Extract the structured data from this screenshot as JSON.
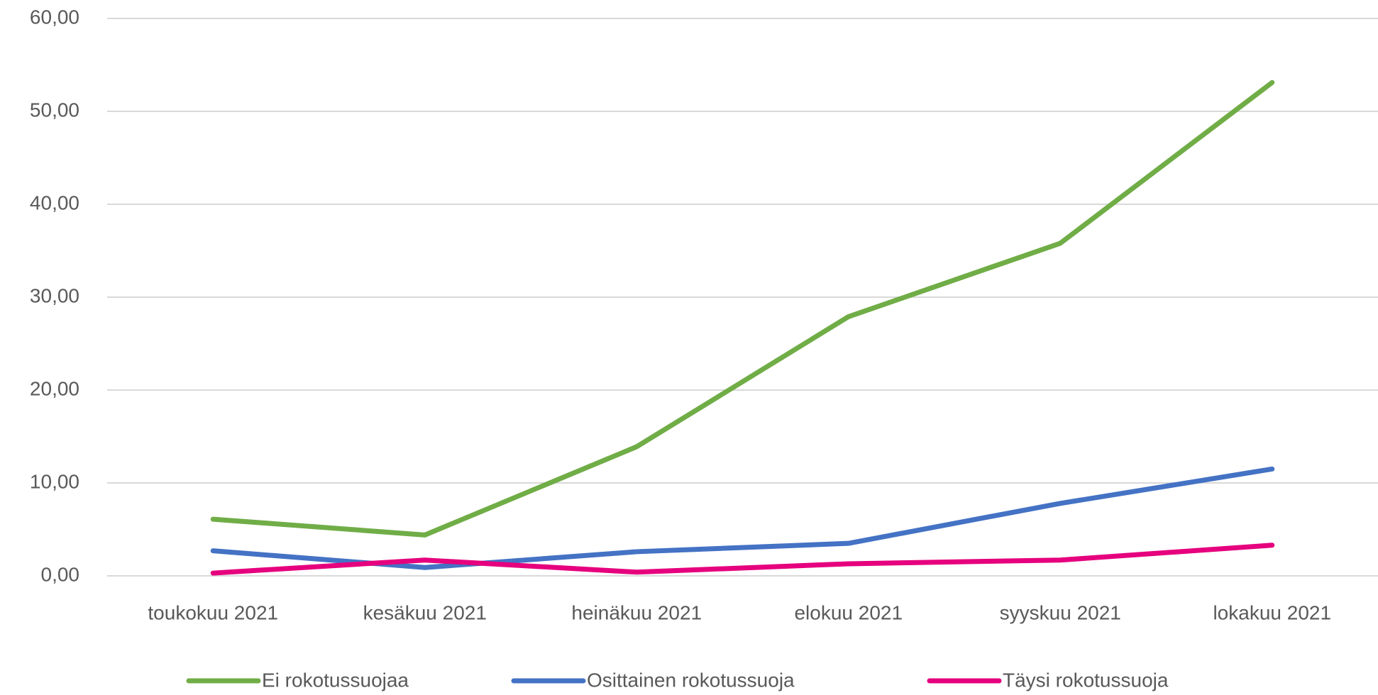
{
  "chart_data": {
    "type": "line",
    "categories": [
      "toukokuu 2021",
      "kesäkuu 2021",
      "heinäkuu 2021",
      "elokuu 2021",
      "syyskuu 2021",
      "lokakuu 2021"
    ],
    "series": [
      {
        "name": "Ei rokotussuojaa",
        "color": "#70ad47",
        "values": [
          6.1,
          4.4,
          13.9,
          27.9,
          35.8,
          53.1
        ]
      },
      {
        "name": "Osittainen rokotussuoja",
        "color": "#4472c4",
        "values": [
          2.7,
          0.9,
          2.6,
          3.5,
          7.8,
          11.5
        ]
      },
      {
        "name": "Täysi rokotussuoja",
        "color": "#e6007e",
        "values": [
          0.3,
          1.7,
          0.4,
          1.3,
          1.7,
          3.3
        ]
      }
    ],
    "ylim": [
      0,
      60
    ],
    "yticks": [
      {
        "value": 0,
        "label": "0,00"
      },
      {
        "value": 10,
        "label": "10,00"
      },
      {
        "value": 20,
        "label": "20,00"
      },
      {
        "value": 30,
        "label": "30,00"
      },
      {
        "value": 40,
        "label": "40,00"
      },
      {
        "value": 50,
        "label": "50,00"
      },
      {
        "value": 60,
        "label": "60,00"
      }
    ],
    "grid": true,
    "legend": "bottom"
  }
}
